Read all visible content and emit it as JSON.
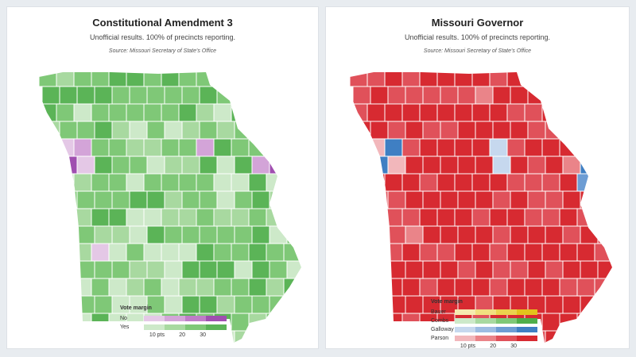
{
  "maps": [
    {
      "title": "Constitutional Amendment 3",
      "subtitle": "Unofficial results. 100% of precincts reporting.",
      "source": "Source: Missouri Secretary of State's Office",
      "legend": {
        "title": "Vote margin",
        "rows": [
          {
            "label": "No",
            "colors": [
              "#e4c8e6",
              "#d3a4d8",
              "#bf7cc7",
              "#a04fb0"
            ]
          },
          {
            "label": "Yes",
            "colors": [
              "#cde9c9",
              "#a8d9a0",
              "#7fc877",
              "#5bb457"
            ]
          }
        ],
        "ticks": [
          "10 pts",
          "20",
          "30"
        ]
      }
    },
    {
      "title": "Missouri Governor",
      "subtitle": "Unofficial results. 100% of precincts reporting.",
      "source": "Source: Missouri Secretary of State's Office",
      "legend": {
        "title": "Vote margin",
        "rows": [
          {
            "label": "Bauer",
            "colors": [
              "#f6eab0",
              "#f1df80",
              "#ebd24e",
              "#e3c31c"
            ]
          },
          {
            "label": "Combs",
            "colors": [
              "#cde9c9",
              "#a8d9a0",
              "#7fc877",
              "#4fae4a"
            ]
          },
          {
            "label": "Galloway",
            "colors": [
              "#c6d8ee",
              "#9dbde3",
              "#6d9dd4",
              "#3f7fc3"
            ]
          },
          {
            "label": "Parson",
            "colors": [
              "#f2b7bb",
              "#ea8489",
              "#e0515a",
              "#d72a31"
            ]
          }
        ],
        "ticks": [
          "10 pts",
          "20",
          "30"
        ]
      }
    }
  ]
}
